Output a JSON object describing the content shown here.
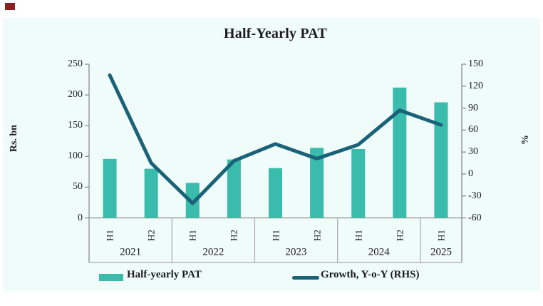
{
  "title": "Half-Yearly PAT",
  "axes": {
    "left_label": "Rs. bn",
    "right_label": "%"
  },
  "legend": {
    "bar_label": "Half-yearly PAT",
    "line_label": "Growth, Y-o-Y (RHS)"
  },
  "colors": {
    "bar": "#3abcac",
    "line": "#1a6278",
    "panel_bg": "#f0fcf9",
    "accent_mark": "#8b2020",
    "axis_line": "#8c8c8c",
    "table_line": "#a9a9a9",
    "text": "#1c1c1c"
  },
  "chart_data": {
    "type": "combo",
    "title": "Half-Yearly PAT",
    "categories": [
      "2021 H1",
      "2021 H2",
      "2022 H1",
      "2022 H2",
      "2023 H1",
      "2023 H2",
      "2024 H1",
      "2024 H2",
      "2025 H1"
    ],
    "half_labels": [
      "H1",
      "H2",
      "H1",
      "H2",
      "H1",
      "H2",
      "H1",
      "H2",
      "H1"
    ],
    "year_groups": [
      {
        "year": "2021",
        "halves": 2
      },
      {
        "year": "2022",
        "halves": 2
      },
      {
        "year": "2023",
        "halves": 2
      },
      {
        "year": "2024",
        "halves": 2
      },
      {
        "year": "2025",
        "halves": 1
      }
    ],
    "series": [
      {
        "name": "Half-yearly PAT",
        "type": "bar",
        "axis": "left",
        "unit": "Rs. bn",
        "values": [
          96,
          80,
          57,
          95,
          81,
          114,
          112,
          212,
          188
        ]
      },
      {
        "name": "Growth, Y-o-Y (RHS)",
        "type": "line",
        "axis": "right",
        "unit": "%",
        "values": [
          135,
          15,
          -40,
          18,
          41,
          21,
          40,
          87,
          67
        ]
      }
    ],
    "left_ylabel": "Rs. bn",
    "left_ylim": [
      0,
      250
    ],
    "left_ticks": [
      0,
      50,
      100,
      150,
      200,
      250
    ],
    "right_ylabel": "%",
    "right_ylim": [
      -60,
      150
    ],
    "right_ticks": [
      -60,
      -30,
      0,
      30,
      60,
      90,
      120,
      150
    ],
    "xlabel": "",
    "grid": false,
    "legend_position": "bottom"
  }
}
